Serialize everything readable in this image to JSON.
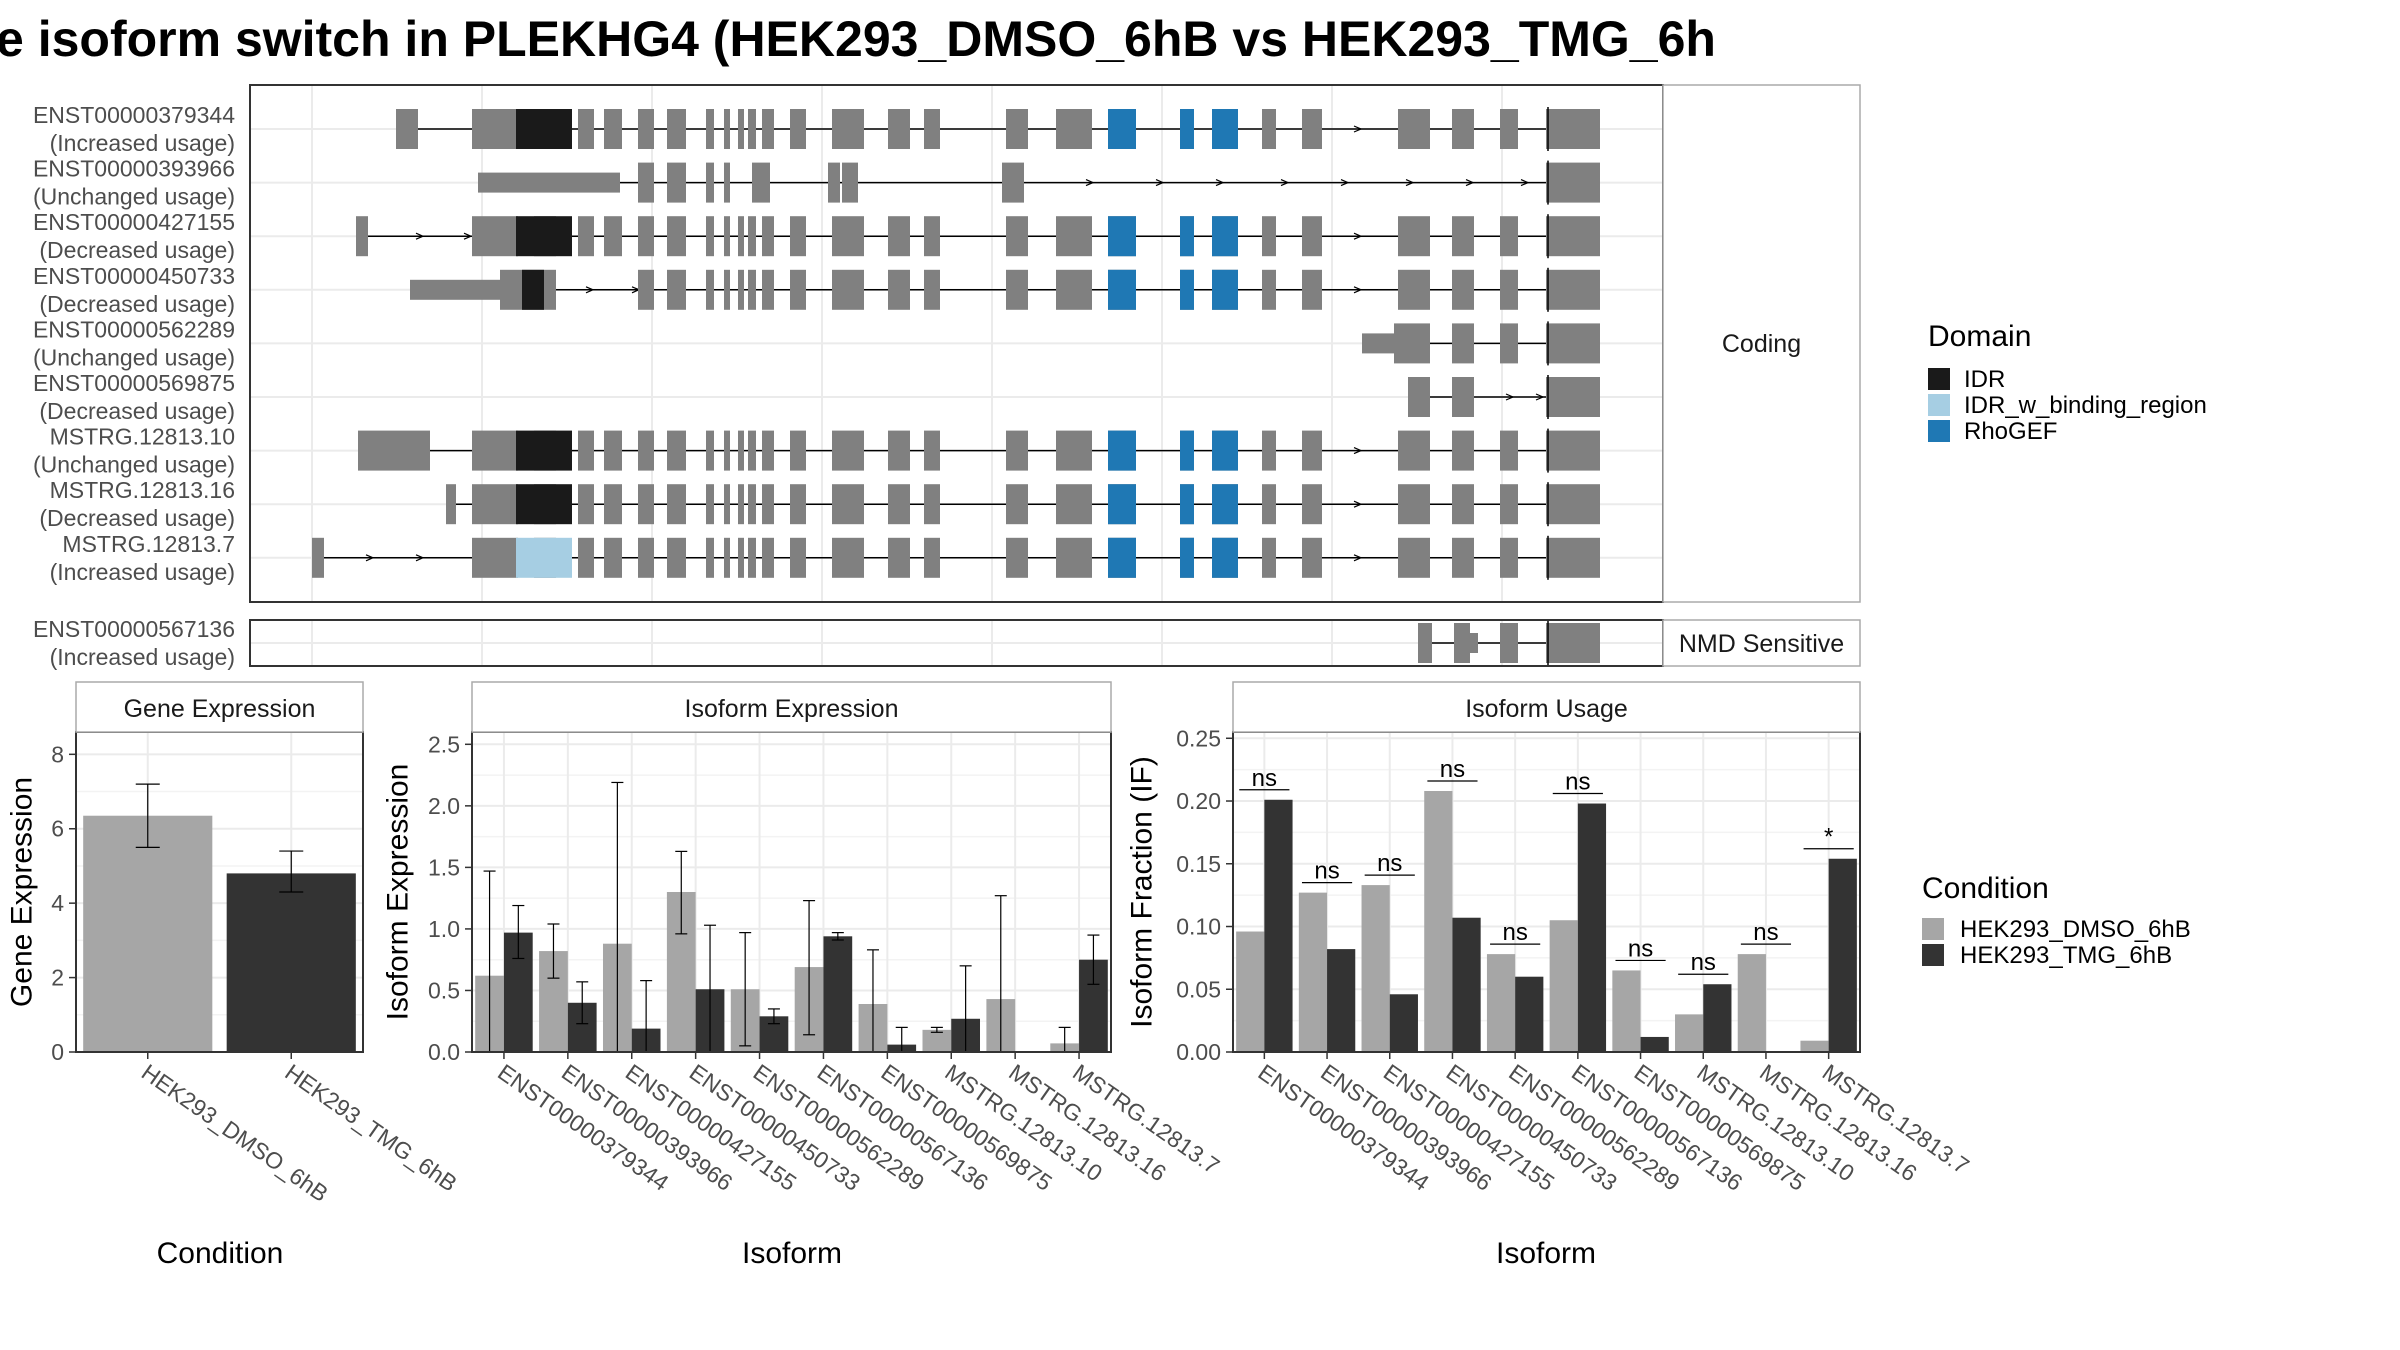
{
  "title": "e isoform switch in PLEKHG4 (HEK293_DMSO_6hB vs HEK293_TMG_6h",
  "colors": {
    "exon": "#808080",
    "IDR": "#1a1a1a",
    "IDR_w_binding_region": "#a6cee3",
    "RhoGEF": "#1f78b4",
    "HEK293_DMSO_6hB": "#a6a6a6",
    "HEK293_TMG_6hB": "#333333",
    "panel_border": "#333333",
    "strip_fill": "#ffffff",
    "grid": "#ebebeb"
  },
  "structure": {
    "facet_coding": "Coding",
    "facet_nmd": "NMD Sensitive",
    "coding_transcripts": [
      {
        "id": "ENST00000379344",
        "usage": "(Increased usage)"
      },
      {
        "id": "ENST00000393966",
        "usage": "(Unchanged usage)"
      },
      {
        "id": "ENST00000427155",
        "usage": "(Decreased usage)"
      },
      {
        "id": "ENST00000450733",
        "usage": "(Decreased usage)"
      },
      {
        "id": "ENST00000562289",
        "usage": "(Unchanged usage)"
      },
      {
        "id": "ENST00000569875",
        "usage": "(Decreased usage)"
      },
      {
        "id": "MSTRG.12813.10",
        "usage": "(Unchanged usage)"
      },
      {
        "id": "MSTRG.12813.16",
        "usage": "(Decreased usage)"
      },
      {
        "id": "MSTRG.12813.7",
        "usage": "(Increased usage)"
      }
    ],
    "nmd_transcripts": [
      {
        "id": "ENST00000567136",
        "usage": "(Increased usage)"
      }
    ]
  },
  "legends": {
    "domain_title": "Domain",
    "domain_items": [
      "IDR",
      "IDR_w_binding_region",
      "RhoGEF"
    ],
    "condition_title": "Condition",
    "condition_items": [
      "HEK293_DMSO_6hB",
      "HEK293_TMG_6hB"
    ]
  },
  "chart_data": [
    {
      "type": "bar",
      "title": "Gene Expression",
      "xlabel": "Condition",
      "ylabel": "Gene Expression",
      "ylim": [
        0,
        8.6
      ],
      "yticks": [
        0,
        2,
        4,
        6,
        8
      ],
      "categories": [
        "HEK293_DMSO_6hB",
        "HEK293_TMG_6hB"
      ],
      "values": [
        6.35,
        4.8
      ],
      "error_low": [
        5.5,
        4.3
      ],
      "error_high": [
        7.2,
        5.4
      ]
    },
    {
      "type": "bar",
      "title": "Isoform Expression",
      "xlabel": "Isoform",
      "ylabel": "Isoform Expression",
      "ylim": [
        0,
        2.6
      ],
      "yticks": [
        0.0,
        0.5,
        1.0,
        1.5,
        2.0,
        2.5
      ],
      "categories": [
        "ENST00000379344",
        "ENST00000393966",
        "ENST00000427155",
        "ENST00000450733",
        "ENST00000562289",
        "ENST00000567136",
        "ENST00000569875",
        "MSTRG.12813.10",
        "MSTRG.12813.16",
        "MSTRG.12813.7"
      ],
      "series": [
        {
          "name": "HEK293_DMSO_6hB",
          "values": [
            0.62,
            0.82,
            0.88,
            1.3,
            0.51,
            0.69,
            0.39,
            0.18,
            0.43,
            0.07
          ],
          "error_low": [
            0.0,
            0.6,
            0.0,
            0.96,
            0.05,
            0.14,
            0.0,
            0.16,
            0.0,
            0.0
          ],
          "error_high": [
            1.47,
            1.04,
            2.19,
            1.63,
            0.97,
            1.23,
            0.83,
            0.2,
            1.27,
            0.2
          ]
        },
        {
          "name": "HEK293_TMG_6hB",
          "values": [
            0.97,
            0.4,
            0.19,
            0.51,
            0.29,
            0.94,
            0.06,
            0.27,
            0.0,
            0.75
          ],
          "error_low": [
            0.76,
            0.23,
            0.0,
            0.0,
            0.23,
            0.91,
            0.0,
            0.0,
            0.0,
            0.55
          ],
          "error_high": [
            1.19,
            0.57,
            0.58,
            1.03,
            0.35,
            0.97,
            0.2,
            0.7,
            0.0,
            0.95
          ]
        }
      ]
    },
    {
      "type": "bar",
      "title": "Isoform Usage",
      "xlabel": "Isoform",
      "ylabel": "Isoform Fraction (IF)",
      "ylim": [
        0,
        0.255
      ],
      "yticks": [
        0.0,
        0.05,
        0.1,
        0.15,
        0.2,
        0.25
      ],
      "categories": [
        "ENST00000379344",
        "ENST00000393966",
        "ENST00000427155",
        "ENST00000450733",
        "ENST00000562289",
        "ENST00000567136",
        "ENST00000569875",
        "MSTRG.12813.10",
        "MSTRG.12813.16",
        "MSTRG.12813.7"
      ],
      "series": [
        {
          "name": "HEK293_DMSO_6hB",
          "values": [
            0.096,
            0.127,
            0.133,
            0.208,
            0.078,
            0.105,
            0.065,
            0.03,
            0.078,
            0.009
          ]
        },
        {
          "name": "HEK293_TMG_6hB",
          "values": [
            0.201,
            0.082,
            0.046,
            0.107,
            0.06,
            0.198,
            0.012,
            0.054,
            0.0,
            0.154
          ]
        }
      ],
      "significance": [
        "ns",
        "ns",
        "ns",
        "ns",
        "ns",
        "ns",
        "ns",
        "ns",
        "ns",
        "*"
      ]
    }
  ]
}
